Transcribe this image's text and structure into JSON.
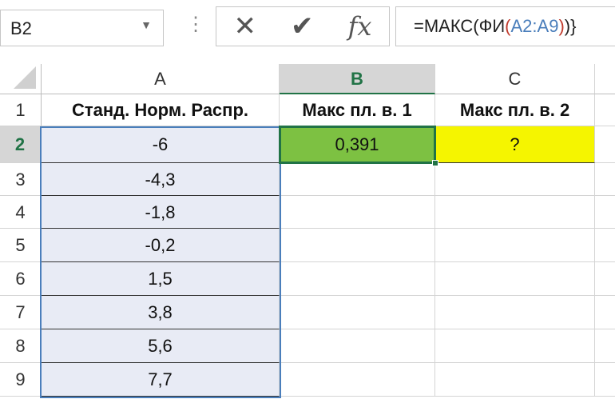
{
  "name_box": {
    "value": "B2",
    "dropdown_icon": "chevron-down-icon"
  },
  "formula_bar": {
    "cancel_icon": "x-icon",
    "enter_icon": "check-icon",
    "fx_label": "fx",
    "formula_parts": [
      "=МАКС(ФИ",
      "(",
      "A2:A9",
      ")",
      ")}"
    ]
  },
  "columns": [
    "A",
    "B",
    "C"
  ],
  "selected_column": "B",
  "rows": [
    "1",
    "2",
    "3",
    "4",
    "5",
    "6",
    "7",
    "8",
    "9"
  ],
  "selected_row": "2",
  "headers": {
    "A": "Станд. Норм. Распр.",
    "B": "Макс пл. в. 1",
    "C": "Макс пл. в. 2"
  },
  "colA_values": [
    "-6",
    "-4,3",
    "-1,8",
    "-0,2",
    "1,5",
    "3,8",
    "5,6",
    "7,7"
  ],
  "B2": "0,391",
  "C2": "?",
  "colors": {
    "B2_fill": "#7dc142",
    "C2_fill": "#f5f500",
    "A_range_fill": "#e8ebf5",
    "selection_border": "#217346",
    "range_border": "#4a7ebb"
  }
}
